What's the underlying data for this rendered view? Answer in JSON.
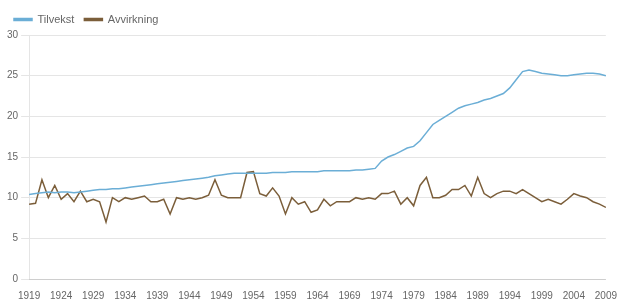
{
  "chart_data": {
    "type": "line",
    "x": [
      1919,
      1920,
      1921,
      1922,
      1923,
      1924,
      1925,
      1926,
      1927,
      1928,
      1929,
      1930,
      1931,
      1932,
      1933,
      1934,
      1935,
      1936,
      1937,
      1938,
      1939,
      1940,
      1941,
      1942,
      1943,
      1944,
      1945,
      1946,
      1947,
      1948,
      1949,
      1950,
      1951,
      1952,
      1953,
      1954,
      1955,
      1956,
      1957,
      1958,
      1959,
      1960,
      1961,
      1962,
      1963,
      1964,
      1965,
      1966,
      1967,
      1968,
      1969,
      1970,
      1971,
      1972,
      1973,
      1974,
      1975,
      1976,
      1977,
      1978,
      1979,
      1980,
      1981,
      1982,
      1983,
      1984,
      1985,
      1986,
      1987,
      1988,
      1989,
      1990,
      1991,
      1992,
      1993,
      1994,
      1995,
      1996,
      1997,
      1998,
      1999,
      2000,
      2001,
      2002,
      2003,
      2004,
      2005,
      2006,
      2007,
      2008,
      2009
    ],
    "series": [
      {
        "name": "Tilvekst",
        "color": "#6baed6",
        "values": [
          10.4,
          10.5,
          10.6,
          10.7,
          10.6,
          10.7,
          10.7,
          10.6,
          10.7,
          10.8,
          10.9,
          11.0,
          11.0,
          11.1,
          11.1,
          11.2,
          11.3,
          11.4,
          11.5,
          11.6,
          11.7,
          11.8,
          11.9,
          12.0,
          12.1,
          12.2,
          12.3,
          12.4,
          12.5,
          12.7,
          12.8,
          12.9,
          13.0,
          13.0,
          13.0,
          13.0,
          13.0,
          13.0,
          13.1,
          13.1,
          13.1,
          13.2,
          13.2,
          13.2,
          13.2,
          13.2,
          13.3,
          13.3,
          13.3,
          13.3,
          13.3,
          13.4,
          13.4,
          13.5,
          13.6,
          14.5,
          15.0,
          15.3,
          15.7,
          16.1,
          16.3,
          17.0,
          18.0,
          19.0,
          19.5,
          20.0,
          20.5,
          21.0,
          21.3,
          21.5,
          21.7,
          22.0,
          22.2,
          22.5,
          22.8,
          23.5,
          24.5,
          25.5,
          25.7,
          25.5,
          25.3,
          25.2,
          25.1,
          25.0,
          25.0,
          25.1,
          25.2,
          25.3,
          25.3,
          25.2,
          25.0
        ]
      },
      {
        "name": "Avvirkning",
        "color": "#7b5e3a",
        "values": [
          9.2,
          9.3,
          12.2,
          10.0,
          11.5,
          9.8,
          10.5,
          9.5,
          10.8,
          9.5,
          9.8,
          9.5,
          7.0,
          10.0,
          9.5,
          10.0,
          9.8,
          10.0,
          10.2,
          9.5,
          9.5,
          9.8,
          8.0,
          10.0,
          9.8,
          10.0,
          9.8,
          10.0,
          10.3,
          12.2,
          10.3,
          10.0,
          10.0,
          10.0,
          13.1,
          13.2,
          10.5,
          10.2,
          11.2,
          10.2,
          8.0,
          10.0,
          9.2,
          9.5,
          8.2,
          8.5,
          9.8,
          9.0,
          9.5,
          9.5,
          9.5,
          10.0,
          9.8,
          10.0,
          9.8,
          10.5,
          10.5,
          10.8,
          9.2,
          10.0,
          9.0,
          11.5,
          12.5,
          10.0,
          10.0,
          10.3,
          11.0,
          11.0,
          11.5,
          10.2,
          12.5,
          10.5,
          10.0,
          10.5,
          10.8,
          10.8,
          10.5,
          11.0,
          10.5,
          10.0,
          9.5,
          9.8,
          9.5,
          9.2,
          9.8,
          10.5,
          10.2,
          10.0,
          9.5,
          9.2,
          8.8
        ]
      }
    ],
    "xlim": [
      1919,
      2009
    ],
    "xticks": [
      1919,
      1924,
      1929,
      1934,
      1939,
      1944,
      1949,
      1954,
      1959,
      1964,
      1969,
      1974,
      1979,
      1984,
      1989,
      1994,
      1999,
      2004,
      2009
    ],
    "ylim": [
      0,
      30
    ],
    "yticks": [
      0,
      5,
      10,
      15,
      20,
      25,
      30
    ],
    "grid": "y",
    "legend": "upper left"
  }
}
